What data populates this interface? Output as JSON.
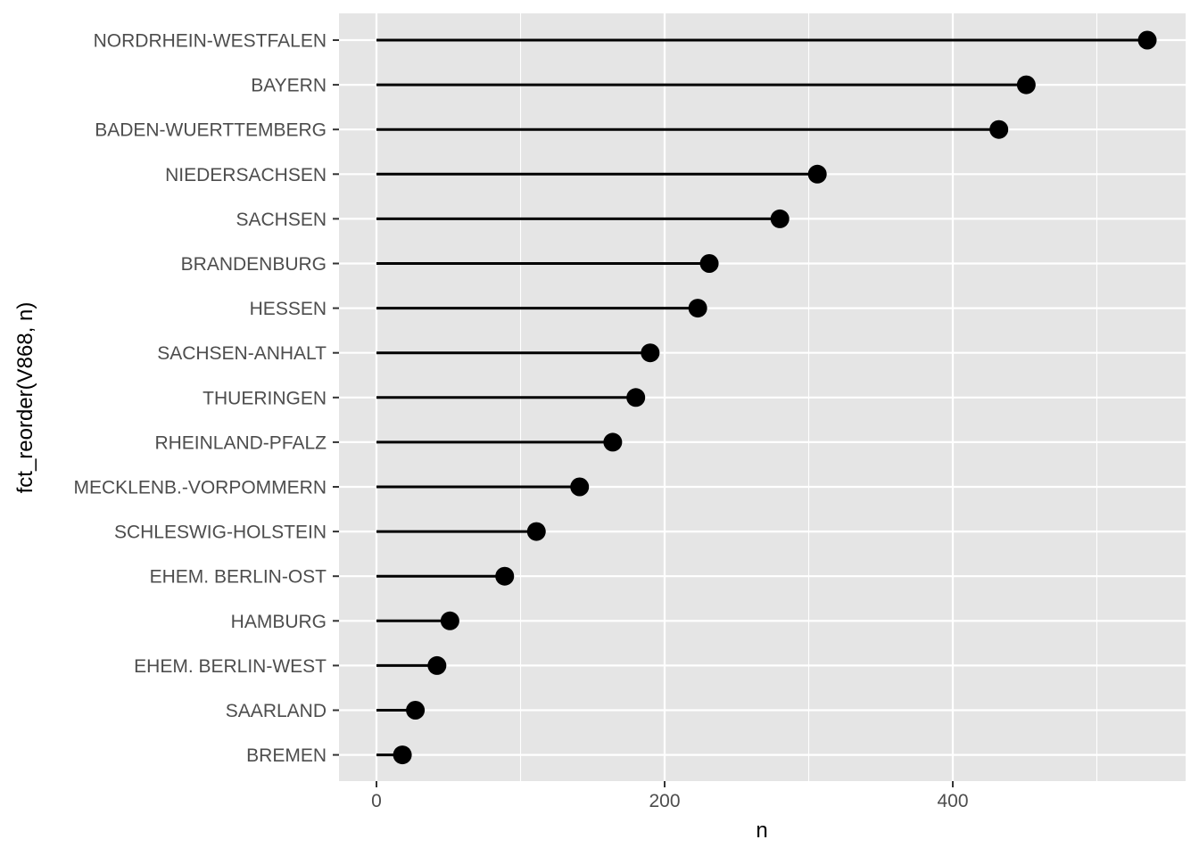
{
  "chart_data": {
    "type": "lollipop",
    "title": "",
    "xlabel": "n",
    "ylabel": "fct_reorder(V868, n)",
    "xlim": [
      -26,
      565
    ],
    "x_major_ticks": [
      0,
      200,
      400
    ],
    "x_minor_ticks": [
      100,
      300,
      500
    ],
    "grid": true,
    "legend": "none",
    "colors": {
      "panel_background": "#e5e5e5",
      "gridline": "#ffffff",
      "mark": "#000000",
      "tick_text": "#4d4d4d",
      "axis_title": "#000000"
    },
    "categories": [
      "NORDRHEIN-WESTFALEN",
      "BAYERN",
      "BADEN-WUERTTEMBERG",
      "NIEDERSACHSEN",
      "SACHSEN",
      "BRANDENBURG",
      "HESSEN",
      "SACHSEN-ANHALT",
      "THUERINGEN",
      "RHEINLAND-PFALZ",
      "MECKLENB.-VORPOMMERN",
      "SCHLESWIG-HOLSTEIN",
      "EHEM. BERLIN-OST",
      "HAMBURG",
      "EHEM. BERLIN-WEST",
      "SAARLAND",
      "BREMEN"
    ],
    "values": [
      535,
      451,
      432,
      306,
      280,
      231,
      223,
      190,
      180,
      164,
      141,
      111,
      89,
      51,
      42,
      27,
      18
    ]
  }
}
